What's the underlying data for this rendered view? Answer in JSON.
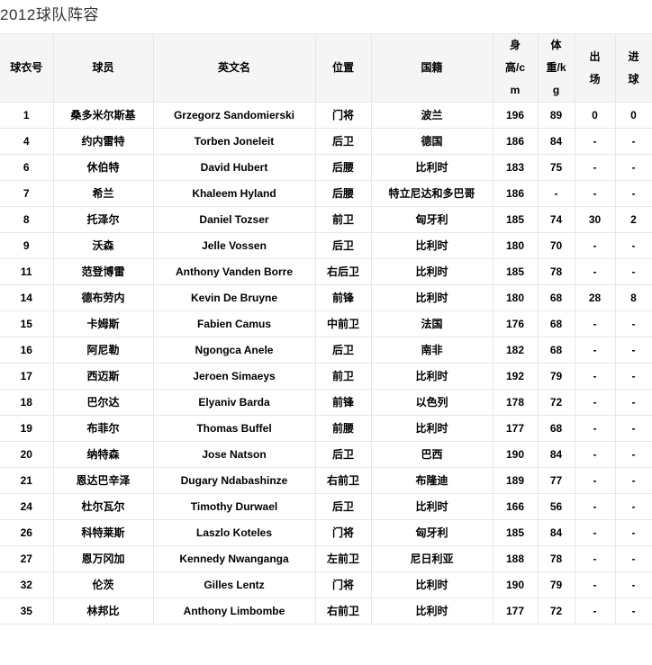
{
  "page": {
    "title": "2012球队阵容"
  },
  "colors": {
    "header_background": "#f5f5f5",
    "border": "#e7e7e7",
    "cell_text": "#000000",
    "title_text": "#333333"
  },
  "table": {
    "columns": [
      {
        "key": "jersey-number",
        "label": "球衣号",
        "display": "球衣号"
      },
      {
        "key": "player",
        "label": "球员",
        "display": "球员"
      },
      {
        "key": "english-name",
        "label": "英文名",
        "display": "英文名"
      },
      {
        "key": "position",
        "label": "位置",
        "display": "位置"
      },
      {
        "key": "nationality",
        "label": "国籍",
        "display": "国籍"
      },
      {
        "key": "height-cm",
        "label": "身高/cm",
        "display": "身\n高/c\nm"
      },
      {
        "key": "weight-kg",
        "label": "体重/kg",
        "display": "体\n重/k\ng"
      },
      {
        "key": "appearances",
        "label": "出场",
        "display": "出\n场"
      },
      {
        "key": "goals",
        "label": "进球",
        "display": "进\n球"
      }
    ],
    "rows": [
      [
        "1",
        "桑多米尔斯基",
        "Grzegorz Sandomierski",
        "门将",
        "波兰",
        "196",
        "89",
        "0",
        "0"
      ],
      [
        "4",
        "约内雷特",
        "Torben Joneleit",
        "后卫",
        "德国",
        "186",
        "84",
        "-",
        "-"
      ],
      [
        "6",
        "休伯特",
        "David Hubert",
        "后腰",
        "比利时",
        "183",
        "75",
        "-",
        "-"
      ],
      [
        "7",
        "希兰",
        "Khaleem Hyland",
        "后腰",
        "特立尼达和多巴哥",
        "186",
        "-",
        "-",
        "-"
      ],
      [
        "8",
        "托泽尔",
        "Daniel Tozser",
        "前卫",
        "匈牙利",
        "185",
        "74",
        "30",
        "2"
      ],
      [
        "9",
        "沃森",
        "Jelle Vossen",
        "后卫",
        "比利时",
        "180",
        "70",
        "-",
        "-"
      ],
      [
        "11",
        "范登博雷",
        "Anthony Vanden Borre",
        "右后卫",
        "比利时",
        "185",
        "78",
        "-",
        "-"
      ],
      [
        "14",
        "德布劳内",
        "Kevin De Bruyne",
        "前锋",
        "比利时",
        "180",
        "68",
        "28",
        "8"
      ],
      [
        "15",
        "卡姆斯",
        "Fabien Camus",
        "中前卫",
        "法国",
        "176",
        "68",
        "-",
        "-"
      ],
      [
        "16",
        "阿尼勒",
        "Ngongca Anele",
        "后卫",
        "南非",
        "182",
        "68",
        "-",
        "-"
      ],
      [
        "17",
        "西迈斯",
        "Jeroen Simaeys",
        "前卫",
        "比利时",
        "192",
        "79",
        "-",
        "-"
      ],
      [
        "18",
        "巴尔达",
        "Elyaniv Barda",
        "前锋",
        "以色列",
        "178",
        "72",
        "-",
        "-"
      ],
      [
        "19",
        "布菲尔",
        "Thomas Buffel",
        "前腰",
        "比利时",
        "177",
        "68",
        "-",
        "-"
      ],
      [
        "20",
        "纳特森",
        "Jose Natson",
        "后卫",
        "巴西",
        "190",
        "84",
        "-",
        "-"
      ],
      [
        "21",
        "恩达巴辛泽",
        "Dugary Ndabashinze",
        "右前卫",
        "布隆迪",
        "189",
        "77",
        "-",
        "-"
      ],
      [
        "24",
        "杜尔瓦尔",
        "Timothy Durwael",
        "后卫",
        "比利时",
        "166",
        "56",
        "-",
        "-"
      ],
      [
        "26",
        "科特莱斯",
        "Laszlo Koteles",
        "门将",
        "匈牙利",
        "185",
        "84",
        "-",
        "-"
      ],
      [
        "27",
        "恩万冈加",
        "Kennedy Nwanganga",
        "左前卫",
        "尼日利亚",
        "188",
        "78",
        "-",
        "-"
      ],
      [
        "32",
        "伦茨",
        "Gilles Lentz",
        "门将",
        "比利时",
        "190",
        "79",
        "-",
        "-"
      ],
      [
        "35",
        "林邦比",
        "Anthony Limbombe",
        "右前卫",
        "比利时",
        "177",
        "72",
        "-",
        "-"
      ]
    ]
  }
}
